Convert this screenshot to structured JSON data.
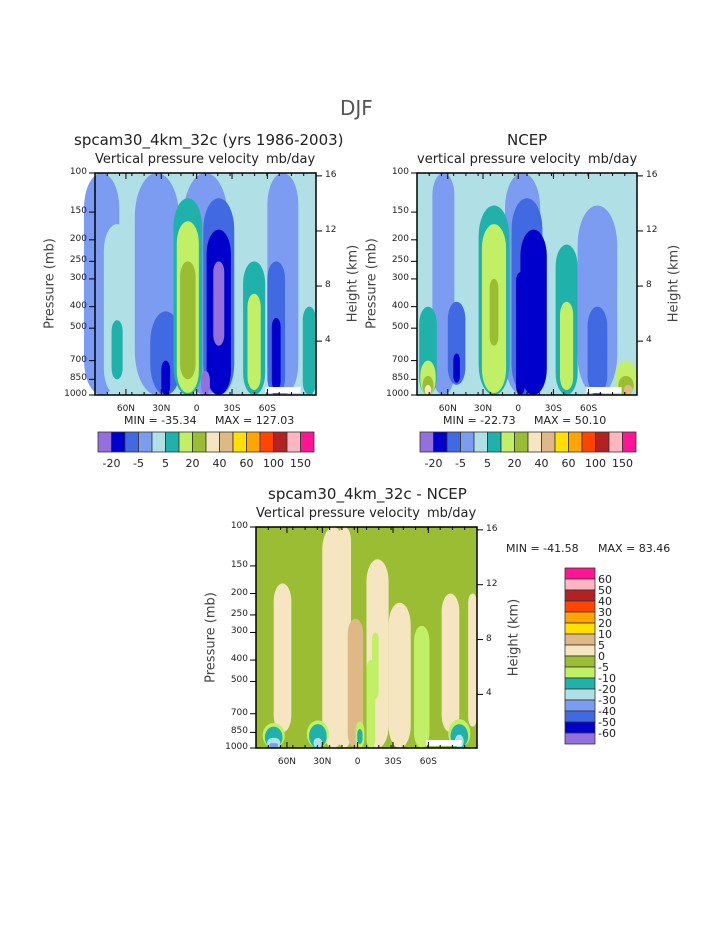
{
  "page_title": "DJF",
  "palette_left": [
    "#9370DB",
    "#0000CD",
    "#4169E1",
    "#7B9CF0",
    "#B0E0E6",
    "#20B2AA",
    "#C1F066",
    "#9ABD34",
    "#F5E6C1",
    "#DEB887",
    "#FFE000",
    "#FFA500",
    "#FF4500",
    "#B22222",
    "#FFB6C1",
    "#FF1493"
  ],
  "palette_diff": [
    "#9370DB",
    "#0000CD",
    "#4169E1",
    "#7B9CF0",
    "#B0E0E6",
    "#20B2AA",
    "#C1F066",
    "#9ABD34",
    "#F5E6C1",
    "#DEB887",
    "#FFE000",
    "#FFA500",
    "#FF4500",
    "#B22222",
    "#FFB6C1",
    "#FF1493"
  ],
  "chart_data": [
    {
      "type": "heatmap",
      "id": "model",
      "title": "spcam30_4km_32c (yrs 1986-2003)",
      "subtitle_left": "Vertical pressure velocity",
      "subtitle_right": "mb/day",
      "ylabel": "Pressure (mb)",
      "y2label": "Height (km)",
      "yticks": [
        "100",
        "150",
        "200",
        "250",
        "300",
        "400",
        "500",
        "700",
        "850",
        "1000"
      ],
      "y2ticks": [
        "16",
        "12",
        "8",
        "4"
      ],
      "xticks": [
        "60N",
        "30N",
        "0",
        "30S",
        "60S"
      ],
      "min_label": "MIN = -35.34",
      "max_label": "MAX = 127.03",
      "levels": [
        "-20",
        "-5",
        "5",
        "20",
        "40",
        "60",
        "100",
        "150"
      ]
    },
    {
      "type": "heatmap",
      "id": "ncep",
      "title": "NCEP",
      "subtitle_left": "vertical pressure velocity",
      "subtitle_right": "mb/day",
      "ylabel": "Pressure (mb)",
      "y2label": "Height (km)",
      "yticks": [
        "100",
        "150",
        "200",
        "250",
        "300",
        "400",
        "500",
        "700",
        "850",
        "1000"
      ],
      "y2ticks": [
        "16",
        "12",
        "8",
        "4"
      ],
      "xticks": [
        "60N",
        "30N",
        "0",
        "30S",
        "60S"
      ],
      "min_label": "MIN = -22.73",
      "max_label": "MAX =  50.10",
      "levels": [
        "-20",
        "-5",
        "5",
        "20",
        "40",
        "60",
        "100",
        "150"
      ]
    },
    {
      "type": "heatmap",
      "id": "diff",
      "title": "spcam30_4km_32c - NCEP",
      "subtitle_left": "Vertical pressure velocity",
      "subtitle_right": "mb/day",
      "ylabel": "Pressure (mb)",
      "y2label": "Height (km)",
      "yticks": [
        "100",
        "150",
        "200",
        "250",
        "300",
        "400",
        "500",
        "700",
        "850",
        "1000"
      ],
      "y2ticks": [
        "16",
        "12",
        "8",
        "4"
      ],
      "xticks": [
        "60N",
        "30N",
        "0",
        "30S",
        "60S"
      ],
      "min_label": "MIN = -41.58",
      "max_label": "MAX =  83.46",
      "levels": [
        "60",
        "50",
        "40",
        "30",
        "20",
        "10",
        "5",
        "0",
        "-5",
        "-10",
        "-20",
        "-30",
        "-40",
        "-50",
        "-60"
      ]
    }
  ]
}
